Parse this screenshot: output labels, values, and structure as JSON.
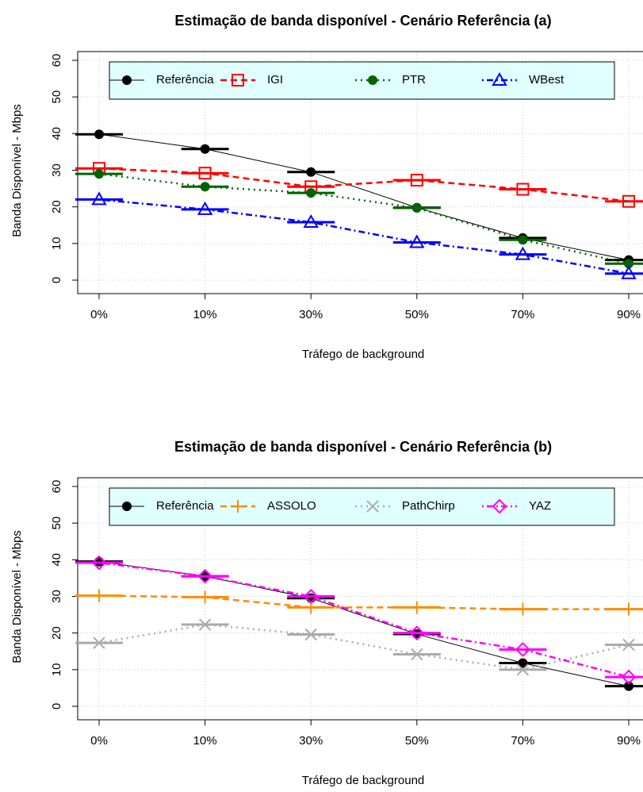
{
  "chart_data": [
    {
      "type": "line",
      "title": "Estimação de banda disponível - Cenário Referência (a)",
      "xlabel": "Tráfego de background",
      "ylabel": "Banda Disponível - Mbps",
      "categories": [
        "0%",
        "10%",
        "30%",
        "50%",
        "70%",
        "90%"
      ],
      "ylim": [
        0,
        60
      ],
      "yticks": [
        0,
        10,
        20,
        30,
        40,
        50,
        60
      ],
      "grid": true,
      "legend": "top",
      "series": [
        {
          "name": "Referência",
          "color": "#000000",
          "dash": "solid",
          "marker": "dot",
          "values": [
            39.8,
            35.8,
            29.5,
            19.8,
            11.5,
            5.5
          ]
        },
        {
          "name": "IGI",
          "color": "#ff0000",
          "dash": "dashed",
          "marker": "square",
          "values": [
            30.5,
            29.2,
            25.5,
            27.3,
            24.8,
            21.5
          ]
        },
        {
          "name": "PTR",
          "color": "#006400",
          "dash": "dotted",
          "marker": "dot",
          "values": [
            29.0,
            25.5,
            23.8,
            19.7,
            11.0,
            4.5
          ]
        },
        {
          "name": "WBest",
          "color": "#0000ff",
          "dash": "dotdash",
          "marker": "triangle",
          "values": [
            22.0,
            19.3,
            15.8,
            10.3,
            7.0,
            1.8
          ]
        }
      ]
    },
    {
      "type": "line",
      "title": "Estimação de banda disponível - Cenário Referência (b)",
      "xlabel": "Tráfego de background",
      "ylabel": "Banda Disponível - Mbps",
      "categories": [
        "0%",
        "10%",
        "30%",
        "50%",
        "70%",
        "90%"
      ],
      "ylim": [
        0,
        60
      ],
      "yticks": [
        0,
        10,
        20,
        30,
        40,
        50,
        60
      ],
      "grid": true,
      "legend": "top",
      "series": [
        {
          "name": "Referência",
          "color": "#000000",
          "dash": "solid",
          "marker": "dot",
          "values": [
            39.5,
            35.5,
            29.5,
            19.7,
            11.8,
            5.5
          ]
        },
        {
          "name": "ASSOLO",
          "color": "#ff8c00",
          "dash": "dashed",
          "marker": "plus",
          "values": [
            30.2,
            29.8,
            27.0,
            27.0,
            26.5,
            26.5
          ]
        },
        {
          "name": "PathChirp",
          "color": "#aaaaaa",
          "dash": "dotted",
          "marker": "cross",
          "values": [
            17.3,
            22.3,
            19.6,
            14.2,
            10.0,
            16.8
          ]
        },
        {
          "name": "YAZ",
          "color": "#ff00ff",
          "dash": "dotdash",
          "marker": "diamond",
          "values": [
            39.2,
            35.5,
            30.0,
            20.0,
            15.5,
            8.0
          ]
        }
      ]
    }
  ]
}
